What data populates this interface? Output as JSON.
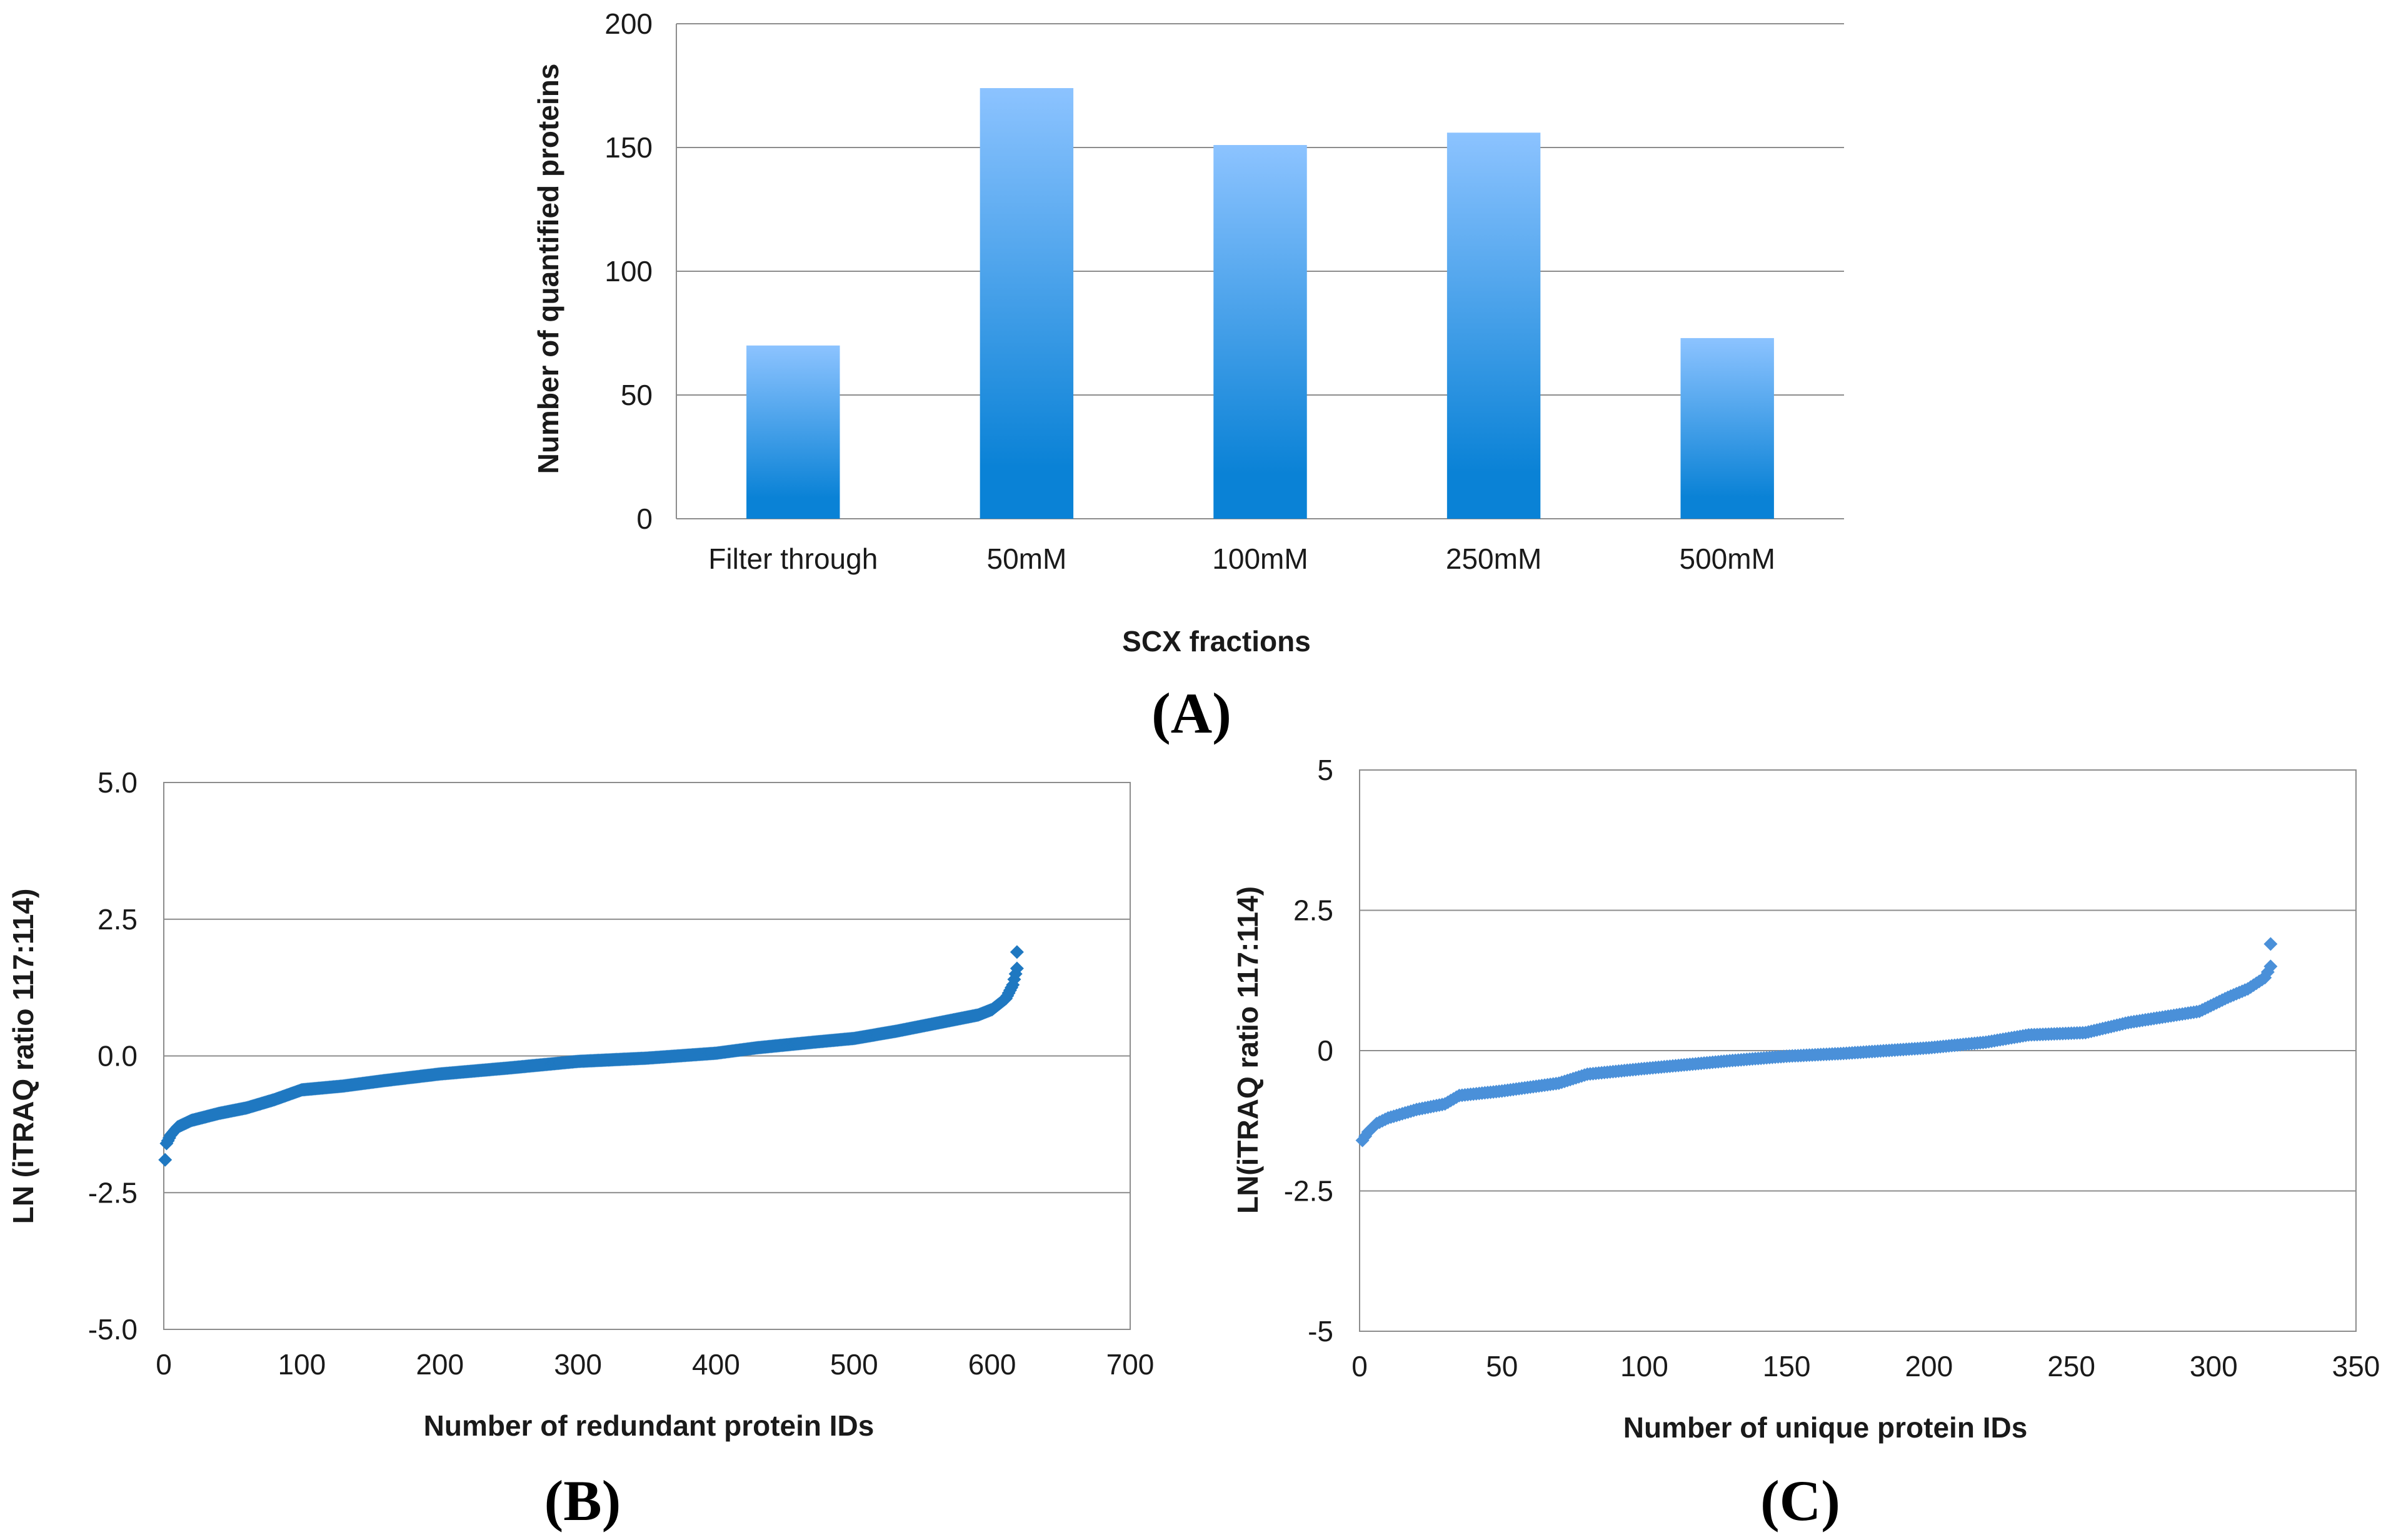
{
  "chart_data": [
    {
      "id": "A",
      "type": "bar",
      "panel_label": "(A)",
      "categories": [
        "Filter through",
        "50mM",
        "100mM",
        "250mM",
        "500mM"
      ],
      "values": [
        70,
        174,
        151,
        156,
        73
      ],
      "xlabel": "SCX fractions",
      "ylabel": "Number of quantified proteins",
      "ylim": [
        0,
        200
      ],
      "yticks": [
        "0",
        "50",
        "100",
        "150",
        "200"
      ],
      "grid": true,
      "legend": "none",
      "bar_color_top": "#8cc3ff",
      "bar_color_bottom": "#0a82d6"
    },
    {
      "id": "B",
      "type": "scatter",
      "panel_label": "(B)",
      "xlabel": "Number of redundant protein IDs",
      "ylabel": "LN (iTRAQ ratio 117:114)",
      "xlim": [
        0,
        700
      ],
      "ylim": [
        -5,
        5
      ],
      "xticks": [
        "0",
        "100",
        "200",
        "300",
        "400",
        "500",
        "600",
        "700"
      ],
      "yticks": [
        "-5.0",
        "-2.5",
        "0.0",
        "2.5",
        "5.0"
      ],
      "grid": true,
      "legend": "none",
      "marker": "diamond",
      "marker_color": "#1f78c1",
      "n_points": 618,
      "curve": [
        [
          1,
          -1.9
        ],
        [
          2,
          -1.6
        ],
        [
          5,
          -1.45
        ],
        [
          10,
          -1.3
        ],
        [
          20,
          -1.18
        ],
        [
          40,
          -1.05
        ],
        [
          60,
          -0.95
        ],
        [
          80,
          -0.8
        ],
        [
          100,
          -0.62
        ],
        [
          130,
          -0.55
        ],
        [
          160,
          -0.45
        ],
        [
          200,
          -0.33
        ],
        [
          250,
          -0.22
        ],
        [
          300,
          -0.1
        ],
        [
          350,
          -0.04
        ],
        [
          400,
          0.05
        ],
        [
          430,
          0.15
        ],
        [
          470,
          0.25
        ],
        [
          500,
          0.32
        ],
        [
          530,
          0.45
        ],
        [
          560,
          0.6
        ],
        [
          590,
          0.75
        ],
        [
          600,
          0.85
        ],
        [
          610,
          1.05
        ],
        [
          615,
          1.3
        ],
        [
          618,
          1.6
        ]
      ],
      "extra_points": [
        [
          618,
          1.9
        ]
      ]
    },
    {
      "id": "C",
      "type": "scatter",
      "panel_label": "(C)",
      "xlabel": "Number of unique protein IDs",
      "ylabel": "LN(iTRAQ ratio 117:114)",
      "xlim": [
        0,
        350
      ],
      "ylim": [
        -5,
        5
      ],
      "xticks": [
        "0",
        "50",
        "100",
        "150",
        "200",
        "250",
        "300",
        "350"
      ],
      "yticks": [
        "-5",
        "-2.5",
        "0",
        "2.5",
        "5"
      ],
      "grid": true,
      "legend": "none",
      "marker": "diamond",
      "marker_color": "#4a90d9",
      "n_points": 320,
      "curve": [
        [
          1,
          -1.6
        ],
        [
          3,
          -1.45
        ],
        [
          6,
          -1.3
        ],
        [
          10,
          -1.2
        ],
        [
          20,
          -1.05
        ],
        [
          30,
          -0.95
        ],
        [
          35,
          -0.8
        ],
        [
          50,
          -0.72
        ],
        [
          70,
          -0.58
        ],
        [
          80,
          -0.42
        ],
        [
          100,
          -0.32
        ],
        [
          130,
          -0.18
        ],
        [
          150,
          -0.1
        ],
        [
          170,
          -0.05
        ],
        [
          200,
          0.05
        ],
        [
          220,
          0.15
        ],
        [
          235,
          0.28
        ],
        [
          255,
          0.32
        ],
        [
          270,
          0.5
        ],
        [
          285,
          0.62
        ],
        [
          295,
          0.7
        ],
        [
          305,
          0.95
        ],
        [
          312,
          1.1
        ],
        [
          318,
          1.3
        ],
        [
          320,
          1.5
        ]
      ],
      "extra_points": [
        [
          320,
          1.9
        ]
      ]
    }
  ]
}
